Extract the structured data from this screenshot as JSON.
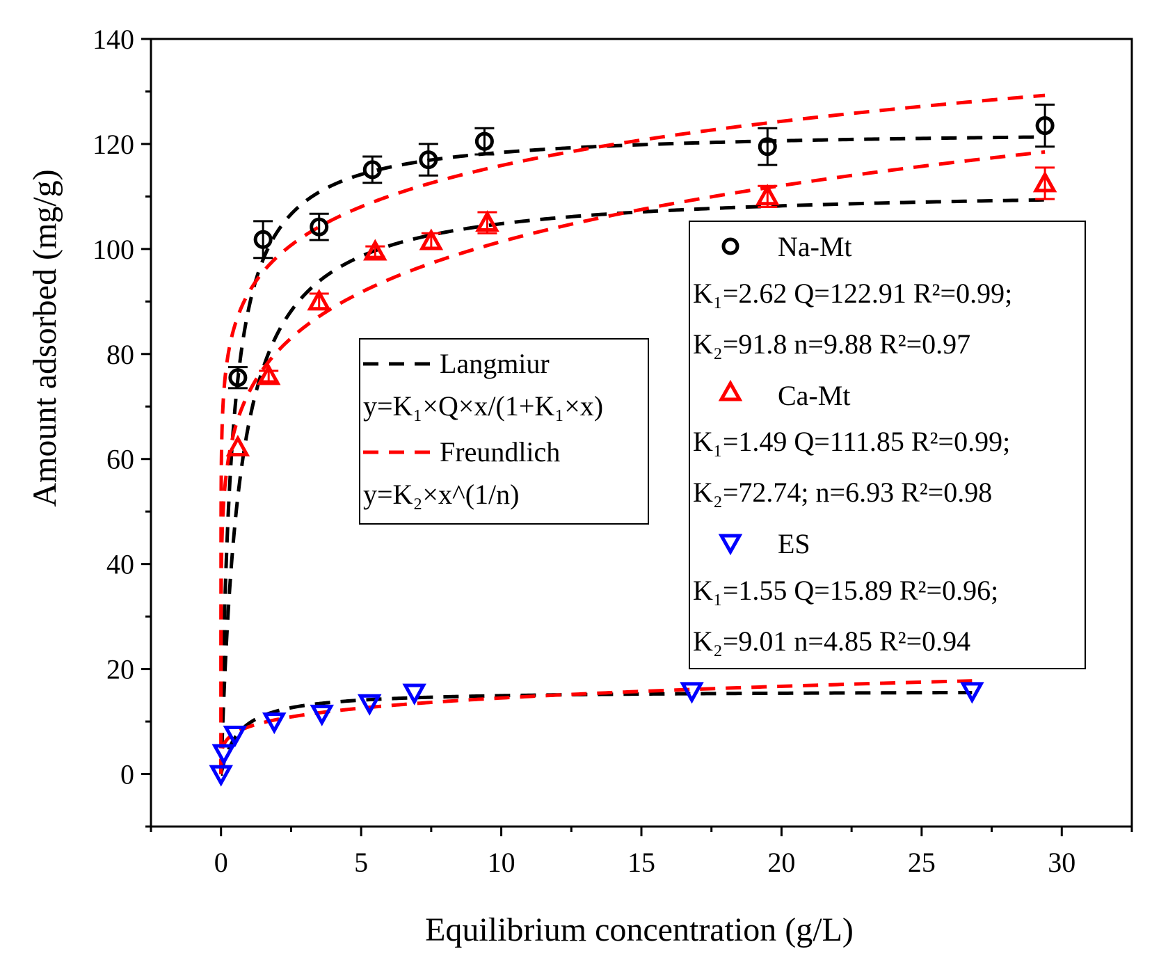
{
  "chart_data": {
    "type": "scatter",
    "title": "",
    "xlabel": "Equilibrium concentration (g/L)",
    "ylabel": "Amount adsorbed (mg/g)",
    "xlim": [
      -2.5,
      32.5
    ],
    "ylim": [
      -10,
      140
    ],
    "xticks": [
      0,
      5,
      10,
      15,
      20,
      25,
      30
    ],
    "yticks": [
      0,
      20,
      40,
      60,
      80,
      100,
      120,
      140
    ],
    "grid": false,
    "colors": {
      "na": "#000000",
      "ca": "#ff0000",
      "es": "#0000ff",
      "langmuir": "#000000",
      "freundlich": "#ff0000"
    },
    "series": [
      {
        "name": "Na-Mt",
        "marker": "circle",
        "color": "#000000",
        "points": [
          {
            "x": 0.6,
            "y": 75.5,
            "err": 2
          },
          {
            "x": 1.5,
            "y": 101.8,
            "err": 3.5
          },
          {
            "x": 3.5,
            "y": 104.2,
            "err": 2.5
          },
          {
            "x": 5.4,
            "y": 115.1,
            "err": 2.5
          },
          {
            "x": 7.4,
            "y": 117.0,
            "err": 3
          },
          {
            "x": 9.4,
            "y": 120.5,
            "err": 2.5
          },
          {
            "x": 19.5,
            "y": 119.5,
            "err": 3.5
          },
          {
            "x": 29.4,
            "y": 123.5,
            "err": 4
          }
        ],
        "legend_label": "Na-Mt",
        "fit_langmuir": "K₁=2.62 Q=122.91 R²=0.99;",
        "fit_freundlich": "K₂=91.8 n=9.88 R²=0.97",
        "params": {
          "K1": 2.62,
          "Q": 122.91,
          "K2": 91.8,
          "n": 9.88
        }
      },
      {
        "name": "Ca-Mt",
        "marker": "triangle-up",
        "color": "#ff0000",
        "points": [
          {
            "x": 0.6,
            "y": 62.2,
            "err": 0
          },
          {
            "x": 1.7,
            "y": 75.8,
            "err": 1
          },
          {
            "x": 3.5,
            "y": 90.0,
            "err": 1.5
          },
          {
            "x": 5.5,
            "y": 99.5,
            "err": 1
          },
          {
            "x": 7.5,
            "y": 101.5,
            "err": 1.5
          },
          {
            "x": 9.5,
            "y": 105.0,
            "err": 2
          },
          {
            "x": 19.5,
            "y": 110.0,
            "err": 2
          },
          {
            "x": 29.4,
            "y": 112.5,
            "err": 3
          }
        ],
        "legend_label": "Ca-Mt",
        "fit_langmuir": "K₁=1.49 Q=111.85 R²=0.99;",
        "fit_freundlich": "K₂=72.74; n=6.93 R²=0.98",
        "params": {
          "K1": 1.49,
          "Q": 111.85,
          "K2": 72.74,
          "n": 6.93
        }
      },
      {
        "name": "ES",
        "marker": "triangle-down",
        "color": "#0000ff",
        "points": [
          {
            "x": 0.0,
            "y": 0.0,
            "err": 0
          },
          {
            "x": 0.1,
            "y": 4.0,
            "err": 0
          },
          {
            "x": 0.5,
            "y": 7.5,
            "err": 0
          },
          {
            "x": 1.9,
            "y": 10.0,
            "err": 0
          },
          {
            "x": 3.6,
            "y": 11.5,
            "err": 0
          },
          {
            "x": 5.3,
            "y": 13.5,
            "err": 0
          },
          {
            "x": 6.9,
            "y": 15.5,
            "err": 0
          },
          {
            "x": 16.8,
            "y": 15.8,
            "err": 0
          },
          {
            "x": 26.8,
            "y": 15.8,
            "err": 0
          }
        ],
        "legend_label": "ES",
        "fit_langmuir": "K₁=1.55 Q=15.89 R²=0.96;",
        "fit_freundlich": "K₂=9.01 n=4.85 R²=0.94",
        "params": {
          "K1": 1.55,
          "Q": 15.89,
          "K2": 9.01,
          "n": 4.85
        }
      }
    ],
    "fit_legend": {
      "langmuir_label": "Langmiur",
      "langmuir_eq": "y=K₁×Q×x/(1+K₁×x)",
      "freundlich_label": "Freundlich",
      "freundlich_eq": "y=K₂×x^(1/n)"
    }
  }
}
